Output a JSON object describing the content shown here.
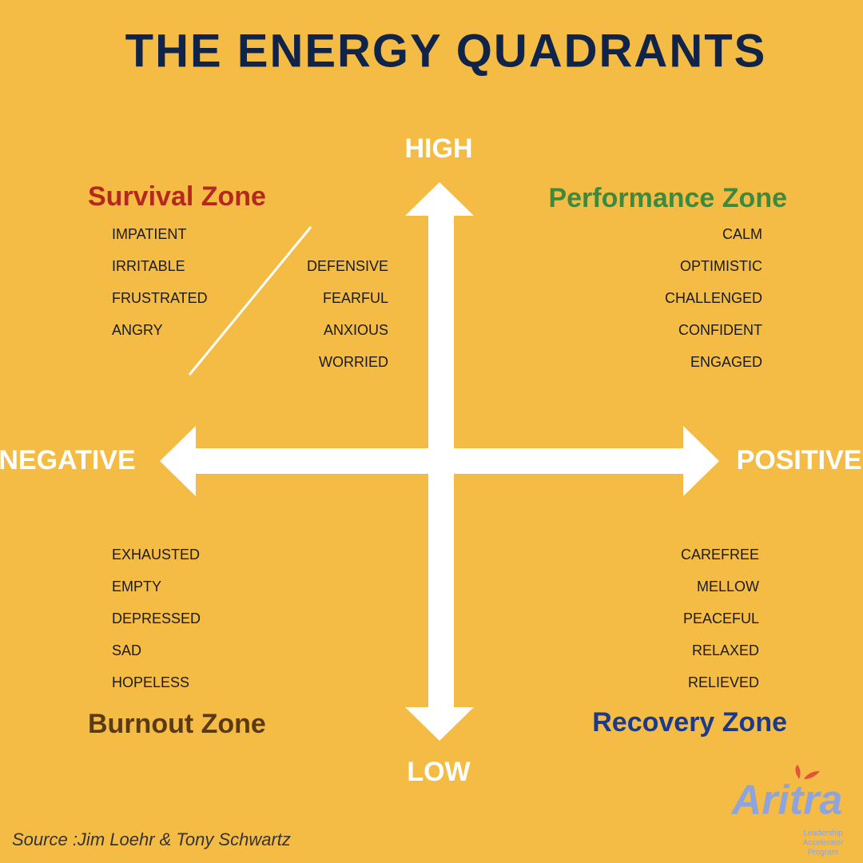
{
  "title": "THE ENERGY QUADRANTS",
  "axes": {
    "high": "HIGH",
    "low": "LOW",
    "negative": "NEGATIVE",
    "positive": "POSITIVE"
  },
  "quadrants": {
    "survival": {
      "title": "Survival Zone",
      "words_left": [
        "IMPATIENT",
        "IRRITABLE",
        "FRUSTRATED",
        "ANGRY"
      ],
      "words_right": [
        "DEFENSIVE",
        "FEARFUL",
        "ANXIOUS",
        "WORRIED"
      ]
    },
    "performance": {
      "title": "Performance Zone",
      "words": [
        "CALM",
        "OPTIMISTIC",
        "CHALLENGED",
        "CONFIDENT",
        "ENGAGED"
      ]
    },
    "burnout": {
      "title": "Burnout Zone",
      "words": [
        "EXHAUSTED",
        "EMPTY",
        "DEPRESSED",
        "SAD",
        "HOPELESS"
      ]
    },
    "recovery": {
      "title": "Recovery Zone",
      "words": [
        "CAREFREE",
        "MELLOW",
        "PEACEFUL",
        "RELAXED",
        "RELIEVED"
      ]
    }
  },
  "source": "Source :Jim Loehr & Tony Schwartz",
  "logo": {
    "name": "Aritra",
    "tagline": [
      "Leadership",
      "Accelerator",
      "Program"
    ]
  }
}
